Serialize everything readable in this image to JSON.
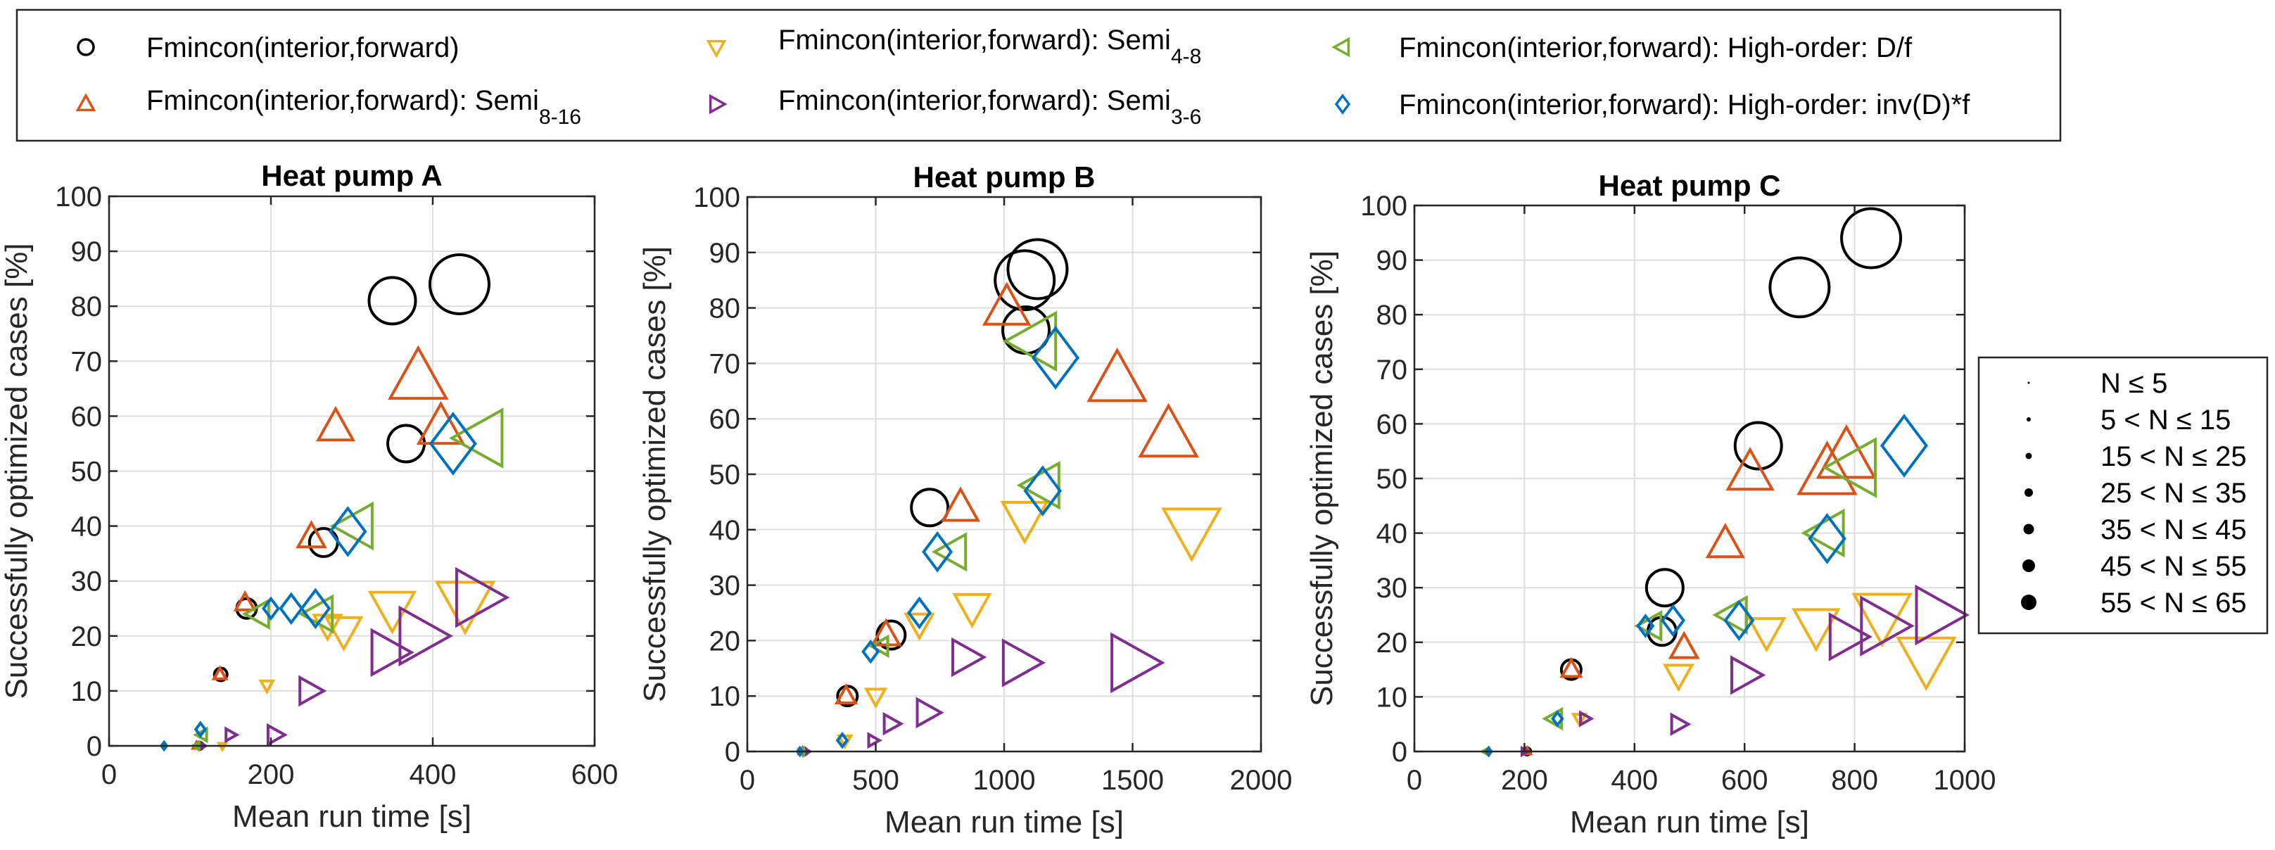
{
  "legend_series": [
    {
      "key": "fwd",
      "label": "Fmincon(interior,forward)",
      "sub": "",
      "marker": "circle",
      "color": "#000000"
    },
    {
      "key": "s816",
      "label": "Fmincon(interior,forward): Semi",
      "sub": "8-16",
      "marker": "triangle-up",
      "color": "#D95319"
    },
    {
      "key": "s48",
      "label": "Fmincon(interior,forward): Semi",
      "sub": "4-8",
      "marker": "triangle-down",
      "color": "#EDB120"
    },
    {
      "key": "s36",
      "label": "Fmincon(interior,forward): Semi",
      "sub": "3-6",
      "marker": "triangle-right",
      "color": "#7E2F8E"
    },
    {
      "key": "hdf",
      "label": "Fmincon(interior,forward): High-order: D/f",
      "sub": "",
      "marker": "triangle-left",
      "color": "#77AC30"
    },
    {
      "key": "hinv",
      "label": "Fmincon(interior,forward): High-order: inv(D)*f",
      "sub": "",
      "marker": "diamond",
      "color": "#0072BD"
    }
  ],
  "size_legend": [
    {
      "label": "N ≤ 5"
    },
    {
      "label": "5 < N ≤ 15"
    },
    {
      "label": "15 < N ≤ 25"
    },
    {
      "label": "25 < N ≤ 35"
    },
    {
      "label": "35 < N ≤ 45"
    },
    {
      "label": "45 < N ≤ 55"
    },
    {
      "label": "55 < N ≤ 65"
    }
  ],
  "chart_data": [
    {
      "type": "scatter",
      "title": "Heat pump A",
      "xlabel": "Mean run time [s]",
      "ylabel": "Successfully optimized cases [%]",
      "xlim": [
        0,
        600
      ],
      "ylim": [
        0,
        100
      ],
      "xticks": [
        0,
        200,
        400,
        600
      ],
      "yticks": [
        0,
        10,
        20,
        30,
        40,
        50,
        60,
        70,
        80,
        90,
        100
      ],
      "grid": true,
      "points": [
        {
          "s": "fwd",
          "x": 112,
          "y": 0,
          "n": 1
        },
        {
          "s": "fwd",
          "x": 138,
          "y": 13,
          "n": 2
        },
        {
          "s": "fwd",
          "x": 170,
          "y": 25,
          "n": 3
        },
        {
          "s": "fwd",
          "x": 265,
          "y": 37,
          "n": 4
        },
        {
          "s": "fwd",
          "x": 367,
          "y": 55,
          "n": 5
        },
        {
          "s": "fwd",
          "x": 350,
          "y": 81,
          "n": 6
        },
        {
          "s": "fwd",
          "x": 433,
          "y": 84,
          "n": 7
        },
        {
          "s": "s816",
          "x": 108,
          "y": 0,
          "n": 1
        },
        {
          "s": "s816",
          "x": 137,
          "y": 13,
          "n": 2
        },
        {
          "s": "s816",
          "x": 168,
          "y": 26,
          "n": 3
        },
        {
          "s": "s816",
          "x": 250,
          "y": 38,
          "n": 4
        },
        {
          "s": "s816",
          "x": 280,
          "y": 58,
          "n": 5
        },
        {
          "s": "s816",
          "x": 410,
          "y": 58,
          "n": 6
        },
        {
          "s": "s816",
          "x": 382,
          "y": 67,
          "n": 7
        },
        {
          "s": "s48",
          "x": 140,
          "y": 0,
          "n": 1
        },
        {
          "s": "s48",
          "x": 195,
          "y": 11,
          "n": 2
        },
        {
          "s": "s48",
          "x": 270,
          "y": 22,
          "n": 4
        },
        {
          "s": "s48",
          "x": 290,
          "y": 21,
          "n": 5
        },
        {
          "s": "s48",
          "x": 350,
          "y": 25,
          "n": 6
        },
        {
          "s": "s48",
          "x": 440,
          "y": 26,
          "n": 7
        },
        {
          "s": "s36",
          "x": 115,
          "y": 0,
          "n": 1
        },
        {
          "s": "s36",
          "x": 150,
          "y": 2,
          "n": 2
        },
        {
          "s": "s36",
          "x": 205,
          "y": 2,
          "n": 3
        },
        {
          "s": "s36",
          "x": 248,
          "y": 10,
          "n": 4
        },
        {
          "s": "s36",
          "x": 345,
          "y": 17,
          "n": 6
        },
        {
          "s": "s36",
          "x": 385,
          "y": 20,
          "n": 7
        },
        {
          "s": "s36",
          "x": 455,
          "y": 27,
          "n": 7
        },
        {
          "s": "hdf",
          "x": 108,
          "y": 0,
          "n": 1
        },
        {
          "s": "hdf",
          "x": 115,
          "y": 2,
          "n": 2
        },
        {
          "s": "hdf",
          "x": 185,
          "y": 24,
          "n": 4
        },
        {
          "s": "hdf",
          "x": 260,
          "y": 24,
          "n": 5
        },
        {
          "s": "hdf",
          "x": 305,
          "y": 40,
          "n": 6
        },
        {
          "s": "hdf",
          "x": 460,
          "y": 56,
          "n": 7
        },
        {
          "s": "hinv",
          "x": 68,
          "y": 0,
          "n": 1
        },
        {
          "s": "hinv",
          "x": 113,
          "y": 3,
          "n": 2
        },
        {
          "s": "hinv",
          "x": 200,
          "y": 25,
          "n": 3
        },
        {
          "s": "hinv",
          "x": 225,
          "y": 25,
          "n": 4
        },
        {
          "s": "hinv",
          "x": 255,
          "y": 25,
          "n": 5
        },
        {
          "s": "hinv",
          "x": 295,
          "y": 39,
          "n": 6
        },
        {
          "s": "hinv",
          "x": 425,
          "y": 55,
          "n": 7
        }
      ]
    },
    {
      "type": "scatter",
      "title": "Heat pump B",
      "xlabel": "Mean run time [s]",
      "ylabel": "Successfully optimized cases [%]",
      "xlim": [
        0,
        2000
      ],
      "ylim": [
        0,
        100
      ],
      "xticks": [
        0,
        500,
        1000,
        1500,
        2000
      ],
      "yticks": [
        0,
        10,
        20,
        30,
        40,
        50,
        60,
        70,
        80,
        90,
        100
      ],
      "grid": true,
      "points": [
        {
          "s": "fwd",
          "x": 220,
          "y": 0,
          "n": 1
        },
        {
          "s": "fwd",
          "x": 390,
          "y": 10,
          "n": 3
        },
        {
          "s": "fwd",
          "x": 560,
          "y": 21,
          "n": 4
        },
        {
          "s": "fwd",
          "x": 710,
          "y": 44,
          "n": 5
        },
        {
          "s": "fwd",
          "x": 1085,
          "y": 76,
          "n": 6
        },
        {
          "s": "fwd",
          "x": 1080,
          "y": 85,
          "n": 7
        },
        {
          "s": "fwd",
          "x": 1130,
          "y": 87,
          "n": 7
        },
        {
          "s": "s816",
          "x": 215,
          "y": 0,
          "n": 1
        },
        {
          "s": "s816",
          "x": 385,
          "y": 10,
          "n": 3
        },
        {
          "s": "s816",
          "x": 540,
          "y": 21,
          "n": 4
        },
        {
          "s": "s816",
          "x": 830,
          "y": 44,
          "n": 5
        },
        {
          "s": "s816",
          "x": 1010,
          "y": 80,
          "n": 6
        },
        {
          "s": "s816",
          "x": 1440,
          "y": 67,
          "n": 7
        },
        {
          "s": "s816",
          "x": 1640,
          "y": 57,
          "n": 7
        },
        {
          "s": "s48",
          "x": 215,
          "y": 0,
          "n": 1
        },
        {
          "s": "s48",
          "x": 380,
          "y": 2,
          "n": 2
        },
        {
          "s": "s48",
          "x": 500,
          "y": 10,
          "n": 3
        },
        {
          "s": "s48",
          "x": 670,
          "y": 23,
          "n": 4
        },
        {
          "s": "s48",
          "x": 875,
          "y": 26,
          "n": 5
        },
        {
          "s": "s48",
          "x": 1080,
          "y": 42,
          "n": 6
        },
        {
          "s": "s48",
          "x": 1730,
          "y": 40,
          "n": 7
        },
        {
          "s": "s36",
          "x": 230,
          "y": 0,
          "n": 1
        },
        {
          "s": "s36",
          "x": 490,
          "y": 2,
          "n": 2
        },
        {
          "s": "s36",
          "x": 560,
          "y": 5,
          "n": 3
        },
        {
          "s": "s36",
          "x": 700,
          "y": 7,
          "n": 4
        },
        {
          "s": "s36",
          "x": 850,
          "y": 17,
          "n": 5
        },
        {
          "s": "s36",
          "x": 1060,
          "y": 16,
          "n": 6
        },
        {
          "s": "s36",
          "x": 1500,
          "y": 16,
          "n": 7
        },
        {
          "s": "hdf",
          "x": 210,
          "y": 0,
          "n": 1
        },
        {
          "s": "hdf",
          "x": 520,
          "y": 19,
          "n": 3
        },
        {
          "s": "hdf",
          "x": 800,
          "y": 36,
          "n": 5
        },
        {
          "s": "hdf",
          "x": 1150,
          "y": 48,
          "n": 6
        },
        {
          "s": "hdf",
          "x": 1120,
          "y": 74,
          "n": 7
        },
        {
          "s": "hinv",
          "x": 205,
          "y": 0,
          "n": 1
        },
        {
          "s": "hinv",
          "x": 370,
          "y": 2,
          "n": 2
        },
        {
          "s": "hinv",
          "x": 480,
          "y": 18,
          "n": 3
        },
        {
          "s": "hinv",
          "x": 670,
          "y": 25,
          "n": 4
        },
        {
          "s": "hinv",
          "x": 740,
          "y": 36,
          "n": 5
        },
        {
          "s": "hinv",
          "x": 1150,
          "y": 47,
          "n": 6
        },
        {
          "s": "hinv",
          "x": 1200,
          "y": 71,
          "n": 7
        }
      ]
    },
    {
      "type": "scatter",
      "title": "Heat pump C",
      "xlabel": "Mean run time [s]",
      "ylabel": "Successfully optimized cases [%]",
      "xlim": [
        0,
        1000
      ],
      "ylim": [
        0,
        100
      ],
      "xticks": [
        0,
        200,
        400,
        600,
        800,
        1000
      ],
      "yticks": [
        0,
        10,
        20,
        30,
        40,
        50,
        60,
        70,
        80,
        90,
        100
      ],
      "grid": true,
      "points": [
        {
          "s": "fwd",
          "x": 205,
          "y": 0,
          "n": 1
        },
        {
          "s": "fwd",
          "x": 285,
          "y": 15,
          "n": 3
        },
        {
          "s": "fwd",
          "x": 450,
          "y": 22,
          "n": 4
        },
        {
          "s": "fwd",
          "x": 455,
          "y": 30,
          "n": 5
        },
        {
          "s": "fwd",
          "x": 625,
          "y": 56,
          "n": 6
        },
        {
          "s": "fwd",
          "x": 700,
          "y": 85,
          "n": 7
        },
        {
          "s": "fwd",
          "x": 830,
          "y": 94,
          "n": 7
        },
        {
          "s": "s816",
          "x": 205,
          "y": 0,
          "n": 1
        },
        {
          "s": "s816",
          "x": 285,
          "y": 15,
          "n": 3
        },
        {
          "s": "s816",
          "x": 490,
          "y": 19,
          "n": 4
        },
        {
          "s": "s816",
          "x": 565,
          "y": 38,
          "n": 5
        },
        {
          "s": "s816",
          "x": 610,
          "y": 51,
          "n": 6
        },
        {
          "s": "s816",
          "x": 750,
          "y": 51,
          "n": 7
        },
        {
          "s": "s816",
          "x": 785,
          "y": 54,
          "n": 7
        },
        {
          "s": "s48",
          "x": 300,
          "y": 6,
          "n": 2
        },
        {
          "s": "s48",
          "x": 480,
          "y": 14,
          "n": 4
        },
        {
          "s": "s48",
          "x": 640,
          "y": 22,
          "n": 5
        },
        {
          "s": "s48",
          "x": 730,
          "y": 23,
          "n": 6
        },
        {
          "s": "s48",
          "x": 850,
          "y": 25,
          "n": 7
        },
        {
          "s": "s48",
          "x": 930,
          "y": 17,
          "n": 7
        },
        {
          "s": "s36",
          "x": 200,
          "y": 0,
          "n": 1
        },
        {
          "s": "s36",
          "x": 310,
          "y": 6,
          "n": 2
        },
        {
          "s": "s36",
          "x": 480,
          "y": 5,
          "n": 3
        },
        {
          "s": "s36",
          "x": 600,
          "y": 14,
          "n": 5
        },
        {
          "s": "s36",
          "x": 785,
          "y": 21,
          "n": 6
        },
        {
          "s": "s36",
          "x": 850,
          "y": 23,
          "n": 7
        },
        {
          "s": "s36",
          "x": 950,
          "y": 25,
          "n": 7
        },
        {
          "s": "hdf",
          "x": 130,
          "y": 0,
          "n": 1
        },
        {
          "s": "hdf",
          "x": 255,
          "y": 6,
          "n": 3
        },
        {
          "s": "hdf",
          "x": 430,
          "y": 23,
          "n": 4
        },
        {
          "s": "hdf",
          "x": 580,
          "y": 25,
          "n": 5
        },
        {
          "s": "hdf",
          "x": 750,
          "y": 40,
          "n": 6
        },
        {
          "s": "hdf",
          "x": 800,
          "y": 52,
          "n": 7
        },
        {
          "s": "hinv",
          "x": 135,
          "y": 0,
          "n": 1
        },
        {
          "s": "hinv",
          "x": 260,
          "y": 6,
          "n": 2
        },
        {
          "s": "hinv",
          "x": 420,
          "y": 23,
          "n": 3
        },
        {
          "s": "hinv",
          "x": 470,
          "y": 24,
          "n": 4
        },
        {
          "s": "hinv",
          "x": 590,
          "y": 24,
          "n": 5
        },
        {
          "s": "hinv",
          "x": 750,
          "y": 39,
          "n": 6
        },
        {
          "s": "hinv",
          "x": 890,
          "y": 56,
          "n": 7
        }
      ]
    }
  ]
}
